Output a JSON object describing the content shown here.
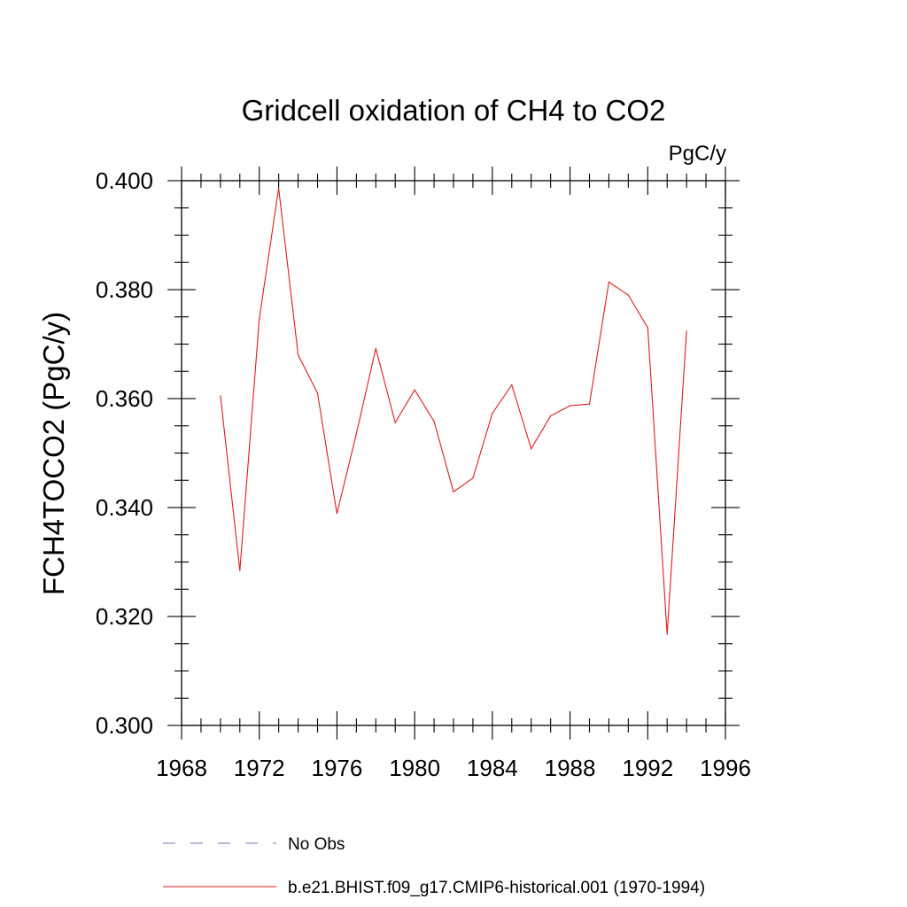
{
  "chart_data": {
    "type": "line",
    "title": "Gridcell oxidation of CH4 to CO2",
    "units": "PgC/y",
    "ylabel": "FCH4TOCO2  (PgC/y)",
    "xlabel": "",
    "xlim": [
      1968,
      1996
    ],
    "ylim": [
      0.3,
      0.4
    ],
    "xticks": [
      "1968",
      "1972",
      "1976",
      "1980",
      "1984",
      "1988",
      "1992",
      "1996"
    ],
    "yticks": [
      "0.300",
      "0.320",
      "0.340",
      "0.360",
      "0.380",
      "0.400"
    ],
    "x_tick_values": [
      1968,
      1972,
      1976,
      1980,
      1984,
      1988,
      1992,
      1996
    ],
    "y_tick_values": [
      0.3,
      0.32,
      0.34,
      0.36,
      0.38,
      0.4
    ],
    "grid": false,
    "legend_position": "bottom",
    "series": [
      {
        "name": "b.e21.BHIST.f09_g17.CMIP6-historical.001 (1970-1994)",
        "color": "#e31a1c",
        "style": "solid",
        "x": [
          1970,
          1971,
          1972,
          1973,
          1974,
          1975,
          1976,
          1977,
          1978,
          1979,
          1980,
          1981,
          1982,
          1983,
          1984,
          1985,
          1986,
          1987,
          1988,
          1989,
          1990,
          1991,
          1992,
          1993,
          1994
        ],
        "y": [
          0.3605,
          0.3284,
          0.3746,
          0.3986,
          0.368,
          0.361,
          0.3389,
          0.3536,
          0.3692,
          0.3556,
          0.3616,
          0.3558,
          0.3429,
          0.3454,
          0.3573,
          0.3625,
          0.3508,
          0.3568,
          0.3587,
          0.359,
          0.3814,
          0.379,
          0.373,
          0.3167,
          0.3724
        ]
      }
    ],
    "legend": [
      {
        "label": "No Obs",
        "color": "#7a70b8",
        "style": "dashed"
      },
      {
        "label": "b.e21.BHIST.f09_g17.CMIP6-historical.001 (1970-1994)",
        "color": "#e31a1c",
        "style": "solid"
      }
    ]
  }
}
